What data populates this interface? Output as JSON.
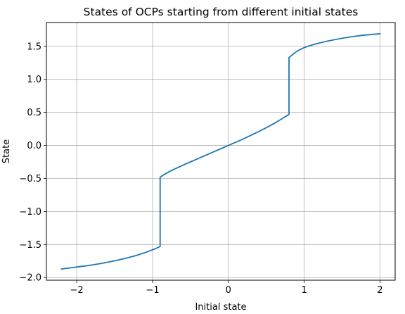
{
  "chart_data": {
    "type": "line",
    "title": "States of OCPs starting from different initial states",
    "xlabel": "Initial state",
    "ylabel": "State",
    "xlim": [
      -2.4,
      2.2
    ],
    "ylim": [
      -2.04,
      1.86
    ],
    "xticks": [
      -2,
      -1,
      0,
      1,
      2
    ],
    "xtick_labels": [
      "−2",
      "−1",
      "0",
      "1",
      "2"
    ],
    "yticks": [
      -2.0,
      -1.5,
      -1.0,
      -0.5,
      0.0,
      0.5,
      1.0,
      1.5
    ],
    "ytick_labels": [
      "−2.0",
      "−1.5",
      "−1.0",
      "−0.5",
      "0.0",
      "0.5",
      "1.0",
      "1.5"
    ],
    "grid": true,
    "series": [
      {
        "color": "#1f77b4",
        "x": [
          -2.2,
          -2.0,
          -1.8,
          -1.6,
          -1.4,
          -1.2,
          -1.0,
          -0.9,
          -0.9,
          -0.8,
          -0.6,
          -0.4,
          -0.2,
          0.0,
          0.2,
          0.4,
          0.6,
          0.8,
          0.8,
          0.9,
          1.0,
          1.2,
          1.4,
          1.6,
          1.8,
          2.0
        ],
        "y": [
          -1.87,
          -1.84,
          -1.81,
          -1.77,
          -1.72,
          -1.66,
          -1.58,
          -1.53,
          -0.48,
          -0.41,
          -0.3,
          -0.2,
          -0.1,
          0.0,
          0.1,
          0.21,
          0.33,
          0.47,
          1.33,
          1.42,
          1.48,
          1.55,
          1.6,
          1.64,
          1.67,
          1.69
        ]
      }
    ]
  }
}
